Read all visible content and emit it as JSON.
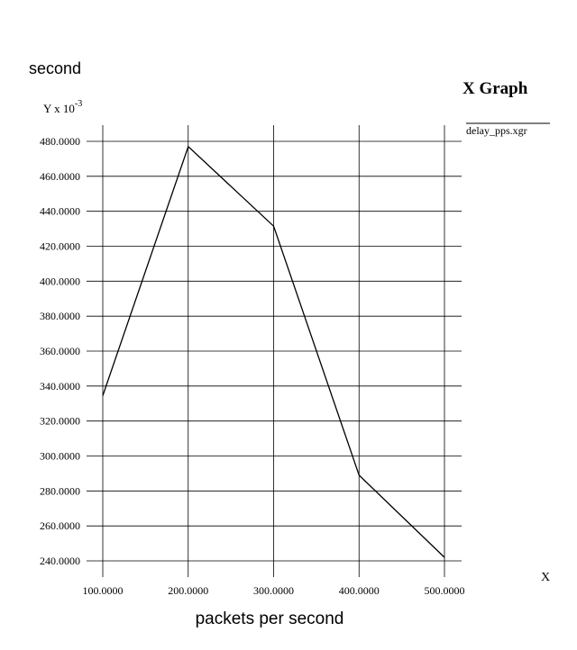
{
  "chart_data": {
    "type": "line",
    "title": "X Graph",
    "ylabel": "second",
    "xlabel": "packets per second",
    "y_scale_label": "Y x 10",
    "y_scale_exponent": "-3",
    "x_axis_letter": "X",
    "legend_position": "top-right",
    "grid": true,
    "xlim": [
      100,
      500
    ],
    "ylim": [
      240,
      480
    ],
    "x_ticks": [
      100,
      200,
      300,
      400,
      500
    ],
    "x_tick_labels": [
      "100.0000",
      "200.0000",
      "300.0000",
      "400.0000",
      "500.0000"
    ],
    "y_ticks": [
      240,
      260,
      280,
      300,
      320,
      340,
      360,
      380,
      400,
      420,
      440,
      460,
      480
    ],
    "y_tick_labels": [
      "240.0000",
      "260.0000",
      "280.0000",
      "300.0000",
      "320.0000",
      "340.0000",
      "360.0000",
      "380.0000",
      "400.0000",
      "420.0000",
      "440.0000",
      "460.0000",
      "480.0000"
    ],
    "series": [
      {
        "name": "delay_pps.xgr",
        "color": "#000000",
        "x": [
          100,
          200,
          300,
          400,
          500
        ],
        "y": [
          334.5,
          477,
          431.5,
          289,
          242
        ]
      }
    ]
  }
}
